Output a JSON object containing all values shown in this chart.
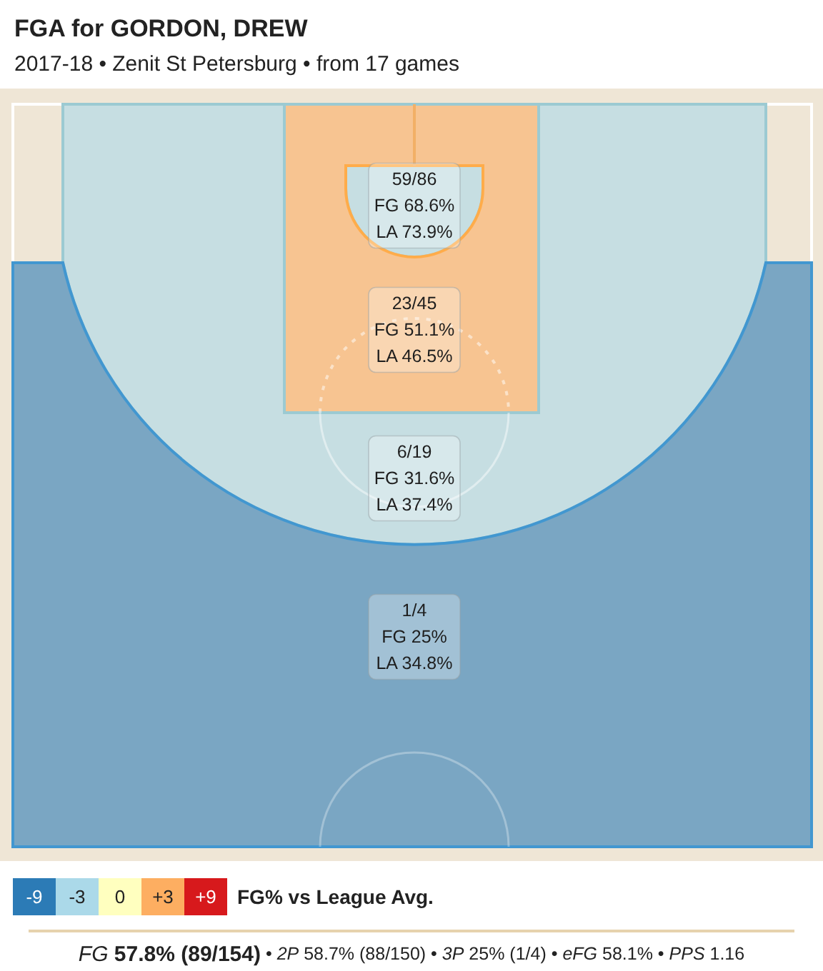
{
  "chart_data": [
    {
      "type": "other",
      "title": "FGA for GORDON, DREW",
      "subtitle": "2017-18 • Zenit St Petersburg • from 17 games",
      "categories": [
        null,
        null,
        null,
        null
      ],
      "values": [
        68.6,
        51.1,
        31.6,
        25
      ],
      "value_labels": [
        "FG 68.6%",
        "FG 51.1%",
        "FG 31.6%",
        "FG 25%"
      ],
      "colors": [
        "#c6dee2",
        "#f7c491",
        "#c6dee2",
        "#7aa6c3"
      ],
      "annotations": [
        "59/86",
        "LA 73.9%",
        "23/45",
        "LA 46.5%",
        "6/19",
        "LA 37.4%",
        "1/4",
        "LA 34.8%",
        "FG 57.8% (89/154) • 2P 58.7% (88/150) • 3P 25% (1/4) • eFG 58.1% • PPS 1.16"
      ]
    },
    {
      "type": "heatmap",
      "categories": [
        null,
        null,
        null,
        null,
        null
      ],
      "y_categories": [
        null
      ],
      "y2_categories": [
        "FG% vs League Avg."
      ],
      "cells": [
        [
          -9,
          -3,
          0,
          3,
          9
        ]
      ],
      "cell_labels": [
        [
          "-9",
          "-3",
          "0",
          "+3",
          "+9"
        ]
      ]
    }
  ]
}
